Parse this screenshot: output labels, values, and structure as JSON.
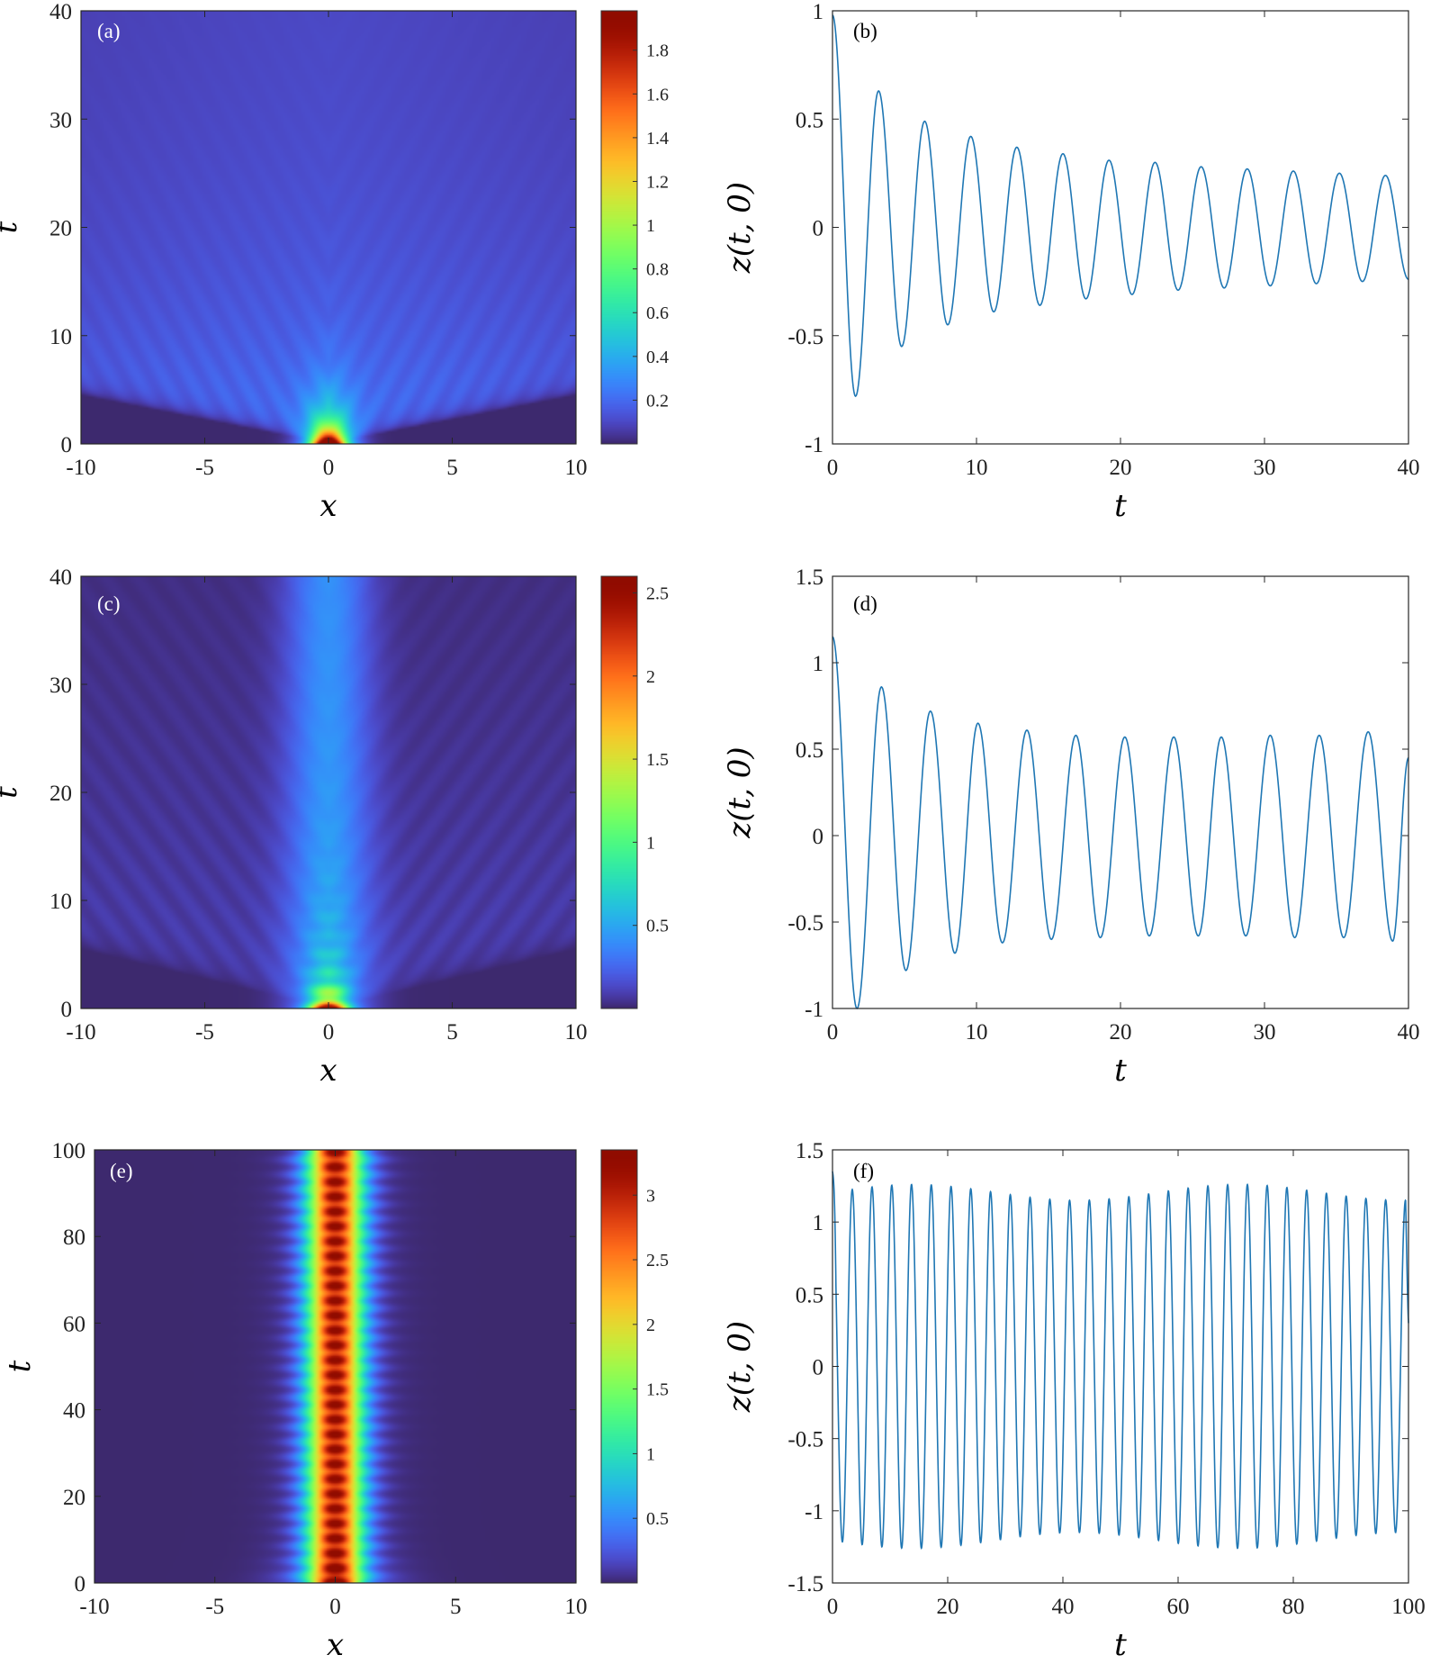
{
  "chart_data": [
    {
      "panel": "(a)",
      "type": "heatmap",
      "xlabel": "x",
      "ylabel": "t",
      "xlim": [
        -10,
        10
      ],
      "ylim": [
        0,
        40
      ],
      "xticks": [
        "-10",
        "-5",
        "0",
        "5",
        "10"
      ],
      "yticks": [
        "0",
        "10",
        "20",
        "30",
        "40"
      ],
      "colorbar": {
        "min": 0,
        "max": 1.98,
        "ticks": [
          "0.2",
          "0.4",
          "0.6",
          "0.8",
          "1",
          "1.2",
          "1.4",
          "1.6",
          "1.8"
        ]
      },
      "model": "radiating",
      "colormap": "turbo"
    },
    {
      "panel": "(b)",
      "type": "line",
      "xlabel": "t",
      "ylabel": "z(t, 0)",
      "xlim": [
        0,
        40
      ],
      "ylim": [
        -1,
        1
      ],
      "xticks": [
        "0",
        "10",
        "20",
        "30",
        "40"
      ],
      "yticks": [
        "-1",
        "-0.5",
        "0",
        "0.5",
        "1"
      ],
      "series": [
        {
          "color": "#1f77b4",
          "t": [
            0,
            1.6,
            3.2,
            4.8,
            6.4,
            8.0,
            9.6,
            11.2,
            12.8,
            14.4,
            16.0,
            17.6,
            19.2,
            20.8,
            22.4,
            24.0,
            25.6,
            27.2,
            28.8,
            30.4,
            32.0,
            33.6,
            35.2,
            36.8,
            38.4,
            40.0
          ],
          "z": [
            0.98,
            -0.78,
            0.63,
            -0.55,
            0.49,
            -0.45,
            0.42,
            -0.39,
            0.37,
            -0.36,
            0.34,
            -0.33,
            0.31,
            -0.31,
            0.3,
            -0.29,
            0.28,
            -0.28,
            0.27,
            -0.27,
            0.26,
            -0.26,
            0.25,
            -0.25,
            0.24,
            -0.24
          ]
        }
      ]
    },
    {
      "panel": "(c)",
      "type": "heatmap",
      "xlabel": "x",
      "ylabel": "t",
      "xlim": [
        -10,
        10
      ],
      "ylim": [
        0,
        40
      ],
      "xticks": [
        "-10",
        "-5",
        "0",
        "5",
        "10"
      ],
      "yticks": [
        "0",
        "10",
        "20",
        "30",
        "40"
      ],
      "colorbar": {
        "min": 0,
        "max": 2.6,
        "ticks": [
          "0.5",
          "1",
          "1.5",
          "2",
          "2.5"
        ]
      },
      "model": "column",
      "colormap": "turbo"
    },
    {
      "panel": "(d)",
      "type": "line",
      "xlabel": "t",
      "ylabel": "z(t, 0)",
      "xlim": [
        0,
        40
      ],
      "ylim": [
        -1,
        1.5
      ],
      "xticks": [
        "0",
        "10",
        "20",
        "30",
        "40"
      ],
      "yticks": [
        "-1",
        "-0.5",
        "0",
        "0.5",
        "1",
        "1.5"
      ],
      "series": [
        {
          "color": "#1f77b4",
          "t": [
            0,
            1.7,
            3.4,
            5.1,
            6.8,
            8.5,
            10.1,
            11.8,
            13.5,
            15.2,
            16.9,
            18.6,
            20.3,
            22.0,
            23.7,
            25.4,
            27.0,
            28.7,
            30.4,
            32.1,
            33.8,
            35.5,
            37.2,
            38.9,
            40.0
          ],
          "z": [
            1.15,
            -1.0,
            0.86,
            -0.78,
            0.72,
            -0.68,
            0.65,
            -0.62,
            0.61,
            -0.6,
            0.58,
            -0.59,
            0.57,
            -0.58,
            0.57,
            -0.58,
            0.57,
            -0.58,
            0.58,
            -0.59,
            0.58,
            -0.59,
            0.6,
            -0.61,
            0.45
          ]
        }
      ]
    },
    {
      "panel": "(e)",
      "type": "heatmap",
      "xlabel": "x",
      "ylabel": "t",
      "xlim": [
        -10,
        10
      ],
      "ylim": [
        0,
        100
      ],
      "xticks": [
        "-10",
        "-5",
        "0",
        "5",
        "10"
      ],
      "yticks": [
        "0",
        "20",
        "40",
        "60",
        "80",
        "100"
      ],
      "colorbar": {
        "min": 0,
        "max": 3.35,
        "ticks": [
          "0.5",
          "1",
          "1.5",
          "2",
          "2.5",
          "3"
        ]
      },
      "model": "breather",
      "colormap": "turbo"
    },
    {
      "panel": "(f)",
      "type": "line",
      "xlabel": "t",
      "ylabel": "z(t, 0)",
      "xlim": [
        0,
        100
      ],
      "ylim": [
        -1.5,
        1.5
      ],
      "xticks": [
        "0",
        "20",
        "40",
        "60",
        "80",
        "100"
      ],
      "yticks": [
        "-1.5",
        "-1",
        "-0.5",
        "0",
        "0.5",
        "1",
        "1.5"
      ],
      "series": [
        {
          "color": "#1f77b4",
          "period": 3.43,
          "amplitude": 1.2,
          "amplitude_range": [
            1.15,
            1.26
          ],
          "start_value": 1.35,
          "end_value": 0.3
        }
      ]
    }
  ]
}
